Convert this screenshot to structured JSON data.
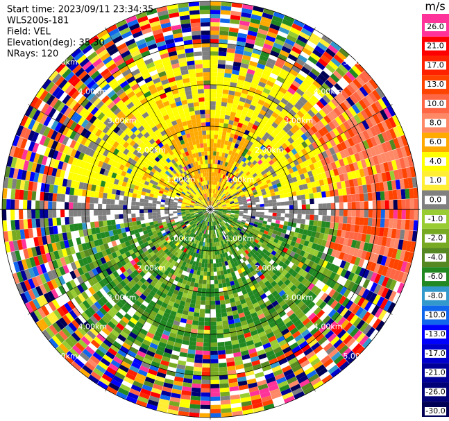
{
  "chart_data": {
    "type": "ppi",
    "info": [
      "Start time: 2023/09/11 23:34:35",
      "WLS200s-181",
      "Field: VEL",
      "Elevation(deg): 35.30",
      "NRays: 120"
    ],
    "range_labels": [
      "1.00km",
      "2.00km",
      "3.00km",
      "4.00km",
      "5.00km"
    ],
    "colorbar": {
      "unit": "m/s",
      "ticks": [
        {
          "value": 26,
          "label": "26.0"
        },
        {
          "value": 21,
          "label": "21.0"
        },
        {
          "value": 17,
          "label": "17.0"
        },
        {
          "value": 13,
          "label": "13.0"
        },
        {
          "value": 10,
          "label": "10.0"
        },
        {
          "value": 8,
          "label": "8.0"
        },
        {
          "value": 6,
          "label": "6.0"
        },
        {
          "value": 4,
          "label": "4.0"
        },
        {
          "value": 1,
          "label": "1.0"
        },
        {
          "value": 0,
          "label": "0.0"
        },
        {
          "value": -1,
          "label": "-1.0"
        },
        {
          "value": -2,
          "label": "-2.0"
        },
        {
          "value": -4,
          "label": "-4.0"
        },
        {
          "value": -6,
          "label": "-6.0"
        },
        {
          "value": -8,
          "label": "-8.0"
        },
        {
          "value": -10,
          "label": "-10.0"
        },
        {
          "value": -13,
          "label": "-13.0"
        },
        {
          "value": -17,
          "label": "-17.0"
        },
        {
          "value": -21,
          "label": "-21.0"
        },
        {
          "value": -26,
          "label": "-26.0"
        },
        {
          "value": -30,
          "label": "-30.0"
        }
      ],
      "colors": [
        "#ff3399",
        "#ff0000",
        "#ff2200",
        "#ff4400",
        "#ff6644",
        "#ff8866",
        "#ffaa00",
        "#ffff00",
        "#ffee33",
        "#808080",
        "#99cc33",
        "#77aa22",
        "#558822",
        "#228822",
        "#3399cc",
        "#1166ee",
        "#0000ff",
        "#0000cc",
        "#000099",
        "#000077",
        "#000055"
      ]
    }
  }
}
